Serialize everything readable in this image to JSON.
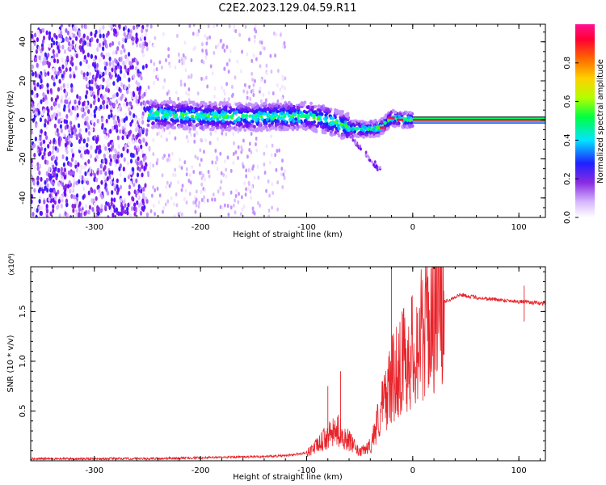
{
  "title": "C2E2.2023.129.04.59.R11",
  "chart_data": [
    {
      "type": "heatmap",
      "xlabel": "Height of straight line (km)",
      "ylabel": "Frequency (Hz)",
      "xlim": [
        -360,
        125
      ],
      "ylim": [
        -50,
        49
      ],
      "x_ticks": [
        -300,
        -200,
        -100,
        0,
        100
      ],
      "y_ticks": [
        -40,
        -20,
        0,
        20,
        40
      ],
      "colorbar": {
        "label": "Normalized spectral amplitude",
        "range": [
          0,
          1
        ],
        "ticks": [
          0.0,
          0.2,
          0.4,
          0.6,
          0.8
        ]
      },
      "features": {
        "noise_region_x": [
          -360,
          -250
        ],
        "signal_band_x": [
          -250,
          0
        ],
        "signal_band_center_hz": [
          [
            -250,
            3
          ],
          [
            -200,
            2
          ],
          [
            -150,
            1.5
          ],
          [
            -100,
            2
          ],
          [
            -80,
            0
          ],
          [
            -60,
            -4
          ],
          [
            -45,
            -5
          ],
          [
            -30,
            -4
          ],
          [
            -20,
            1
          ],
          [
            -10,
            0
          ],
          [
            0,
            0
          ]
        ],
        "steady_tone_x": [
          0,
          125
        ],
        "steady_tone_hz": 0
      }
    },
    {
      "type": "line",
      "xlabel": "Height of straight line (km)",
      "ylabel": "SNR (10 * v/v)",
      "scale_label": "(x10⁴)",
      "xlim": [
        -360,
        125
      ],
      "ylim": [
        0,
        1.95
      ],
      "x_ticks": [
        -300,
        -200,
        -100,
        0,
        100
      ],
      "y_ticks": [
        0.5,
        1.0,
        1.5
      ],
      "series": [
        {
          "color": "#e8232a",
          "envelope": [
            [
              -360,
              0.02
            ],
            [
              -250,
              0.02
            ],
            [
              -200,
              0.03
            ],
            [
              -150,
              0.04
            ],
            [
              -120,
              0.05
            ],
            [
              -100,
              0.08
            ],
            [
              -90,
              0.15
            ],
            [
              -80,
              0.25
            ],
            [
              -70,
              0.3
            ],
            [
              -60,
              0.2
            ],
            [
              -50,
              0.08
            ],
            [
              -40,
              0.15
            ],
            [
              -30,
              0.5
            ],
            [
              -20,
              0.8
            ],
            [
              -10,
              1.0
            ],
            [
              0,
              1.1
            ],
            [
              10,
              1.3
            ],
            [
              20,
              1.5
            ],
            [
              30,
              1.6
            ],
            [
              45,
              1.67
            ],
            [
              60,
              1.64
            ],
            [
              80,
              1.62
            ],
            [
              100,
              1.6
            ],
            [
              125,
              1.58
            ]
          ],
          "spikes": [
            [
              -20,
              1.95
            ],
            [
              -10,
              1.5
            ],
            [
              -68,
              0.9
            ],
            [
              -80,
              0.75
            ],
            [
              105,
              1.76
            ],
            [
              105,
              1.4
            ]
          ]
        }
      ]
    }
  ]
}
